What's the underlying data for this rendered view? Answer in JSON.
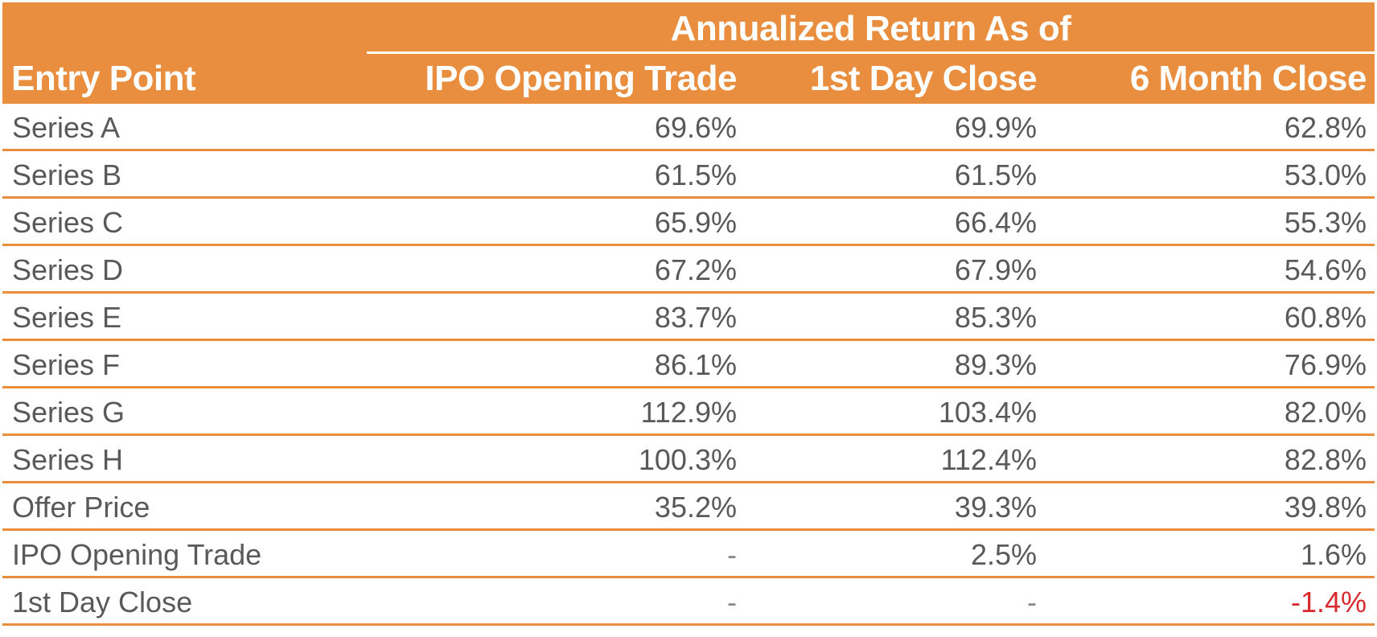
{
  "chart_data": {
    "type": "table",
    "header_group": "Annualized Return As of",
    "columns": [
      "Entry Point",
      "IPO Opening Trade",
      "1st Day Close",
      "6 Month Close"
    ],
    "rows": [
      {
        "label": "Series A",
        "values": [
          "69.6%",
          "69.9%",
          "62.8%"
        ]
      },
      {
        "label": "Series B",
        "values": [
          "61.5%",
          "61.5%",
          "53.0%"
        ]
      },
      {
        "label": "Series C",
        "values": [
          "65.9%",
          "66.4%",
          "55.3%"
        ]
      },
      {
        "label": "Series D",
        "values": [
          "67.2%",
          "67.9%",
          "54.6%"
        ]
      },
      {
        "label": "Series E",
        "values": [
          "83.7%",
          "85.3%",
          "60.8%"
        ]
      },
      {
        "label": "Series F",
        "values": [
          "86.1%",
          "89.3%",
          "76.9%"
        ]
      },
      {
        "label": "Series G",
        "values": [
          "112.9%",
          "103.4%",
          "82.0%"
        ]
      },
      {
        "label": "Series H",
        "values": [
          "100.3%",
          "112.4%",
          "82.8%"
        ]
      },
      {
        "label": "Offer Price",
        "values": [
          "35.2%",
          "39.3%",
          "39.8%"
        ]
      },
      {
        "label": "IPO Opening Trade",
        "values": [
          "-",
          "2.5%",
          "1.6%"
        ]
      },
      {
        "label": "1st Day Close",
        "values": [
          "-",
          "-",
          "-1.4%"
        ]
      }
    ],
    "colors": {
      "header_bg": "#e88e3e",
      "header_text": "#ffffff",
      "body_text": "#595959",
      "negative": "#d9292f",
      "rule": "#e88e3e"
    }
  }
}
